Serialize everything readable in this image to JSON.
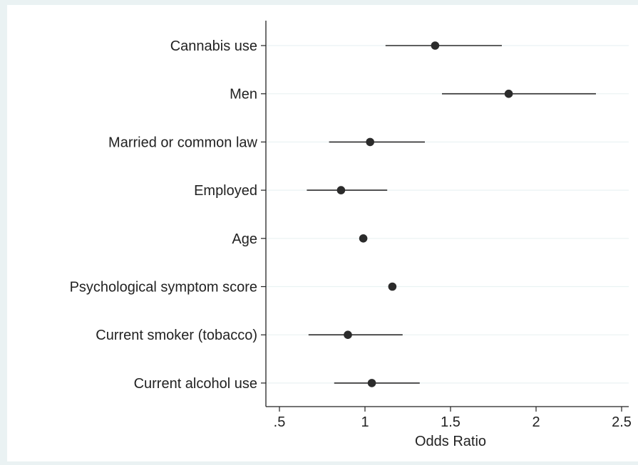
{
  "chart_data": {
    "type": "scatter",
    "subtype": "coefficient-plot",
    "xlabel": "Odds Ratio",
    "ylabel": "",
    "xlim": [
      0.5,
      2.5
    ],
    "xticks": [
      0.5,
      1,
      1.5,
      2,
      2.5
    ],
    "xtick_labels": [
      ".5",
      "1",
      "1.5",
      "2",
      "2.5"
    ],
    "grid": "horizontal",
    "legend": "none",
    "colors": {
      "marker": "#2b2b2b",
      "ci_line": "#2b2b2b",
      "grid": "#eaf2f3",
      "axis": "#222222"
    },
    "categories": [
      "Cannabis use",
      "Men",
      "Married or common law",
      "Employed",
      "Age",
      "Psychological symptom score",
      "Current smoker (tobacco)",
      "Current alcohol use"
    ],
    "estimates": [
      1.41,
      1.84,
      1.03,
      0.86,
      0.99,
      1.16,
      0.9,
      1.04
    ],
    "ci_lower": [
      1.12,
      1.45,
      0.79,
      0.66,
      0.98,
      1.14,
      0.67,
      0.82
    ],
    "ci_upper": [
      1.8,
      2.35,
      1.35,
      1.13,
      1.0,
      1.18,
      1.22,
      1.32
    ]
  }
}
